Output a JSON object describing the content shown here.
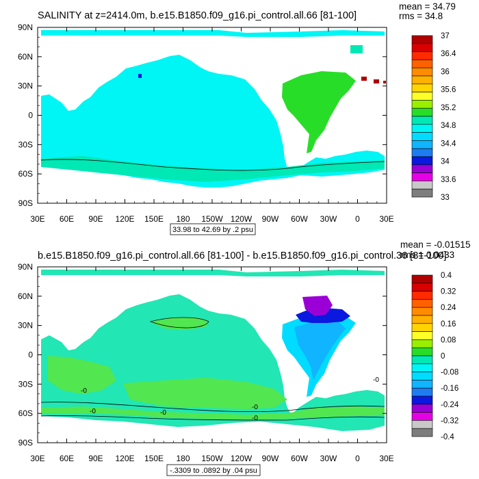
{
  "colors": {
    "ocean_cyan": "#00f5f5",
    "ocean_teal": "#22e6b4",
    "ocean_green": "#52e650",
    "ocean_blue": "#1e8fe8",
    "ocean_sky": "#10c8f5",
    "ocean_purple": "#9a00d6",
    "ocean_navy": "#0a18e0",
    "ocean_red": "#b00000",
    "land": "#ffffff"
  },
  "chart_data": [
    {
      "type": "heatmap",
      "title": "SALINITY at z=2414.0m, b.e15.B1850.f09_g16.pi_control.all.66 [81-100]",
      "stats": {
        "mean": "mean = 34.79",
        "rms": "rms = 34.8"
      },
      "x_ticks": [
        "30E",
        "60E",
        "90E",
        "120E",
        "150E",
        "180",
        "150W",
        "120W",
        "90W",
        "60W",
        "30W",
        "0",
        "30E"
      ],
      "y_ticks": [
        "90N",
        "60N",
        "30N",
        "0",
        "30S",
        "60S",
        "90S"
      ],
      "contour_info": "33.98 to 42.69 by .2 psu",
      "colorbar": {
        "labels": [
          "37",
          "36.4",
          "36",
          "35.6",
          "35.2",
          "34.8",
          "34.4",
          "34",
          "33.6",
          "33"
        ],
        "colors": [
          "#b00000",
          "#d80000",
          "#ff2a00",
          "#ff6000",
          "#ff8c00",
          "#ffb000",
          "#ffd400",
          "#ffff28",
          "#9aee00",
          "#28dd28",
          "#00e8b4",
          "#00f5f5",
          "#00dcff",
          "#10b4ff",
          "#1e7cf0",
          "#0a18e0",
          "#9a00d6",
          "#e600e6",
          "#c8c8c8",
          "#7d7d7d"
        ]
      },
      "x_range": [
        30,
        390
      ],
      "y_range": [
        -90,
        90
      ]
    },
    {
      "type": "heatmap",
      "title": "b.e15.B1850.f09_g16.pi_control.all.66 [81-100] - b.e15.B1850.f09_g16.pi_control.36 [81-100]",
      "stats": {
        "mean": "mean = -0.01515",
        "rms": "rms = 0.0433"
      },
      "x_ticks": [
        "30E",
        "60E",
        "90E",
        "120E",
        "150E",
        "180",
        "150W",
        "120W",
        "90W",
        "60W",
        "30W",
        "0",
        "30E"
      ],
      "y_ticks": [
        "90N",
        "60N",
        "30N",
        "0",
        "30S",
        "60S",
        "90S"
      ],
      "contour_info": "-.3309 to .0892 by .04 psu",
      "contour_labels": [
        "-0",
        "-0",
        "-0",
        "-0",
        "-0",
        "-0"
      ],
      "colorbar": {
        "labels": [
          "0.4",
          "0.32",
          "0.24",
          "0.16",
          "0.08",
          "0",
          "-0.08",
          "-0.16",
          "-0.24",
          "-0.32",
          "-0.4"
        ],
        "colors": [
          "#b00000",
          "#d80000",
          "#ff2a00",
          "#ff6000",
          "#ff8c00",
          "#ffb000",
          "#ffd400",
          "#ffff28",
          "#9aee00",
          "#28dd28",
          "#00e8b4",
          "#00f5f5",
          "#00dcff",
          "#10b4ff",
          "#1e7cf0",
          "#0a18e0",
          "#9a00d6",
          "#e600e6",
          "#c8c8c8",
          "#7d7d7d"
        ]
      },
      "x_range": [
        30,
        390
      ],
      "y_range": [
        -90,
        90
      ]
    }
  ]
}
